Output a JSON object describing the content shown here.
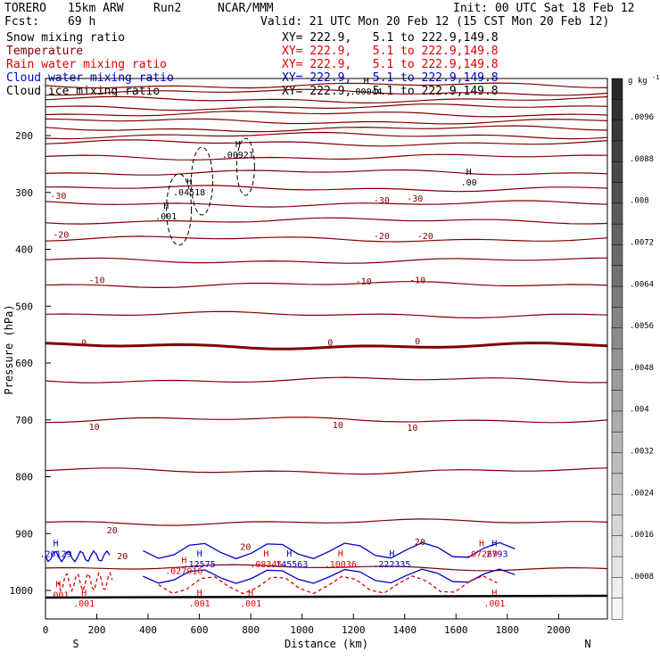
{
  "header": {
    "model": "TORERO",
    "resolution": "15km ARW",
    "run": "Run2",
    "org": "NCAR/MMM",
    "init": "Init: 00 UTC Sat 18 Feb 12",
    "fcst_label": "Fcst:",
    "fcst_value": "69 h",
    "valid": "Valid: 21 UTC Mon 20 Feb 12 (15 CST Mon 20 Feb 12)"
  },
  "legend": [
    {
      "name": "Snow mixing ratio",
      "color": "#000000",
      "xy": "XY= 222.9,   5.1 to 222.9,149.8"
    },
    {
      "name": "Temperature",
      "color": "#800000",
      "xy": "XY= 222.9,   5.1 to 222.9,149.8"
    },
    {
      "name": "Rain water mixing ratio",
      "color": "#e00000",
      "xy": "XY= 222.9,   5.1 to 222.9,149.8"
    },
    {
      "name": "Cloud water mixing ratio",
      "color": "#0000c8",
      "xy": "XY= 222.9,   5.1 to 222.9,149.8"
    },
    {
      "name": "Cloud ice mixing ratio",
      "color": "#000000",
      "xy": "XY= 222.9,   5.1 to 222.9,149.8"
    }
  ],
  "chart_data": {
    "type": "contour-cross-section",
    "xlabel": "Distance (km)",
    "ylabel": "Pressure (hPa)",
    "xlim": [
      0,
      2190
    ],
    "ylim": [
      1050,
      100
    ],
    "x_ticks": [
      0,
      200,
      400,
      600,
      800,
      1000,
      1200,
      1400,
      1600,
      1800,
      2000
    ],
    "y_ticks": [
      200,
      300,
      400,
      500,
      600,
      700,
      800,
      900,
      1000
    ],
    "x_end_labels": {
      "left": "S",
      "right": "N"
    },
    "colorbar": {
      "unit": "g kg",
      "unit_exp": "-1",
      "ticks": [
        ".0096",
        ".0088",
        ".008",
        ".0072",
        ".0064",
        ".0056",
        ".0048",
        ".004",
        ".0032",
        ".0024",
        ".0016",
        ".0008"
      ]
    },
    "isotherms_pressure": [
      112,
      124,
      137,
      150,
      162,
      175,
      188,
      200,
      213,
      238,
      265,
      293,
      320,
      350,
      382,
      420,
      462,
      515,
      570,
      630,
      700,
      790,
      880,
      960
    ],
    "temperature_labels": [
      {
        "x": 50,
        "p": 305,
        "text": "-30"
      },
      {
        "x": 1310,
        "p": 313,
        "text": "-30"
      },
      {
        "x": 1440,
        "p": 310,
        "text": "-30"
      },
      {
        "x": 60,
        "p": 373,
        "text": "-20"
      },
      {
        "x": 1310,
        "p": 376,
        "text": "-20"
      },
      {
        "x": 1480,
        "p": 376,
        "text": "-20"
      },
      {
        "x": 200,
        "p": 453,
        "text": "-10"
      },
      {
        "x": 1240,
        "p": 456,
        "text": "-10"
      },
      {
        "x": 1450,
        "p": 453,
        "text": "-10"
      },
      {
        "x": 150,
        "p": 563,
        "text": "0"
      },
      {
        "x": 1110,
        "p": 563,
        "text": "0"
      },
      {
        "x": 1450,
        "p": 561,
        "text": "0"
      },
      {
        "x": 190,
        "p": 711,
        "text": "10"
      },
      {
        "x": 1140,
        "p": 708,
        "text": "10"
      },
      {
        "x": 1430,
        "p": 713,
        "text": "10"
      },
      {
        "x": 260,
        "p": 893,
        "text": "20"
      },
      {
        "x": 300,
        "p": 939,
        "text": "20"
      },
      {
        "x": 780,
        "p": 922,
        "text": "20"
      },
      {
        "x": 1460,
        "p": 914,
        "text": "20"
      }
    ],
    "maxima_labels": [
      {
        "x": 750,
        "p": 236,
        "text": ".00921",
        "color": "#000000"
      },
      {
        "x": 1650,
        "p": 285,
        "text": ".00",
        "color": "#000000"
      },
      {
        "x": 560,
        "p": 302,
        "text": ".04518",
        "color": "#000000"
      },
      {
        "x": 470,
        "p": 344,
        "text": ".001",
        "color": "#000000"
      },
      {
        "x": 1250,
        "p": 125,
        "text": ".00044",
        "color": "#000000"
      },
      {
        "x": 40,
        "p": 938,
        "text": ".20129",
        "color": "#0000c8"
      },
      {
        "x": 600,
        "p": 956,
        "text": ".12575",
        "color": "#0000c8"
      },
      {
        "x": 950,
        "p": 956,
        "text": ".145563",
        "color": "#0000c8"
      },
      {
        "x": 1350,
        "p": 956,
        "text": ".222335",
        "color": "#0000c8"
      },
      {
        "x": 1750,
        "p": 938,
        "text": ".2793",
        "color": "#0000c8"
      },
      {
        "x": 540,
        "p": 968,
        "text": ".027916",
        "color": "#e00000"
      },
      {
        "x": 860,
        "p": 956,
        "text": ".08345",
        "color": "#e00000"
      },
      {
        "x": 1150,
        "p": 956,
        "text": ".10036",
        "color": "#e00000"
      },
      {
        "x": 1700,
        "p": 938,
        "text": ".07269",
        "color": "#e00000"
      },
      {
        "x": 50,
        "p": 1010,
        "text": ".001",
        "color": "#e00000"
      },
      {
        "x": 150,
        "p": 1025,
        "text": ".001",
        "color": "#e00000"
      },
      {
        "x": 600,
        "p": 1025,
        "text": ".001",
        "color": "#e00000"
      },
      {
        "x": 800,
        "p": 1025,
        "text": ".001",
        "color": "#e00000"
      },
      {
        "x": 1750,
        "p": 1025,
        "text": ".001",
        "color": "#e00000"
      }
    ]
  }
}
